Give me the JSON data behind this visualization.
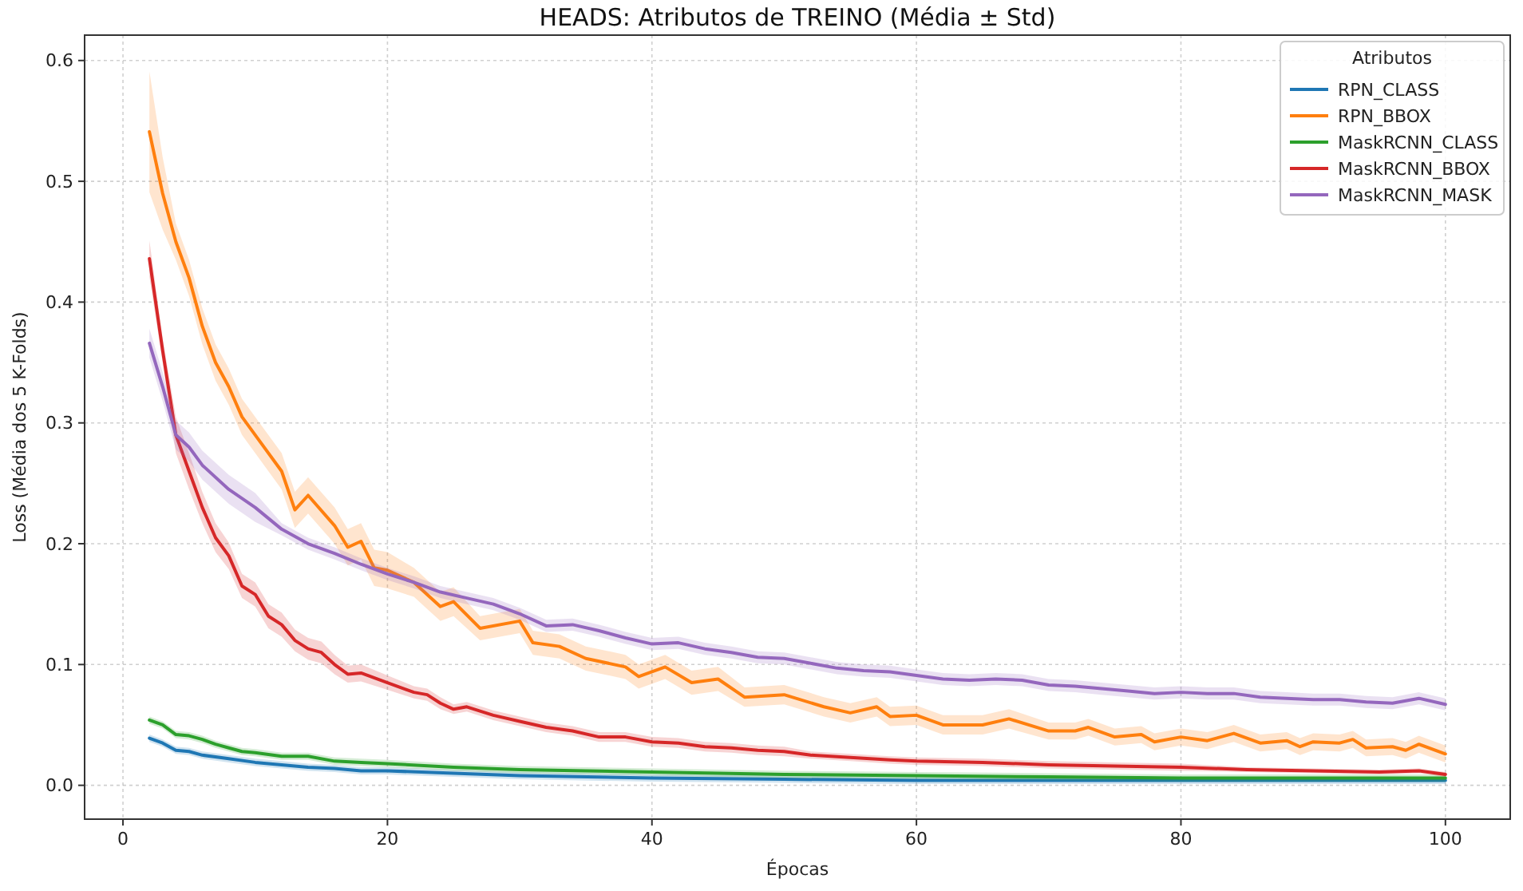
{
  "chart_data": {
    "type": "line",
    "title": "HEADS: Atributos de TREINO (Média ± Std)",
    "xlabel": "Épocas",
    "ylabel": "Loss (Média dos 5 K-Folds)",
    "legend_title": "Atributos",
    "legend": "top right",
    "grid": true,
    "line_style": "solid",
    "marker": "none",
    "xlim": [
      -2.9,
      104.9
    ],
    "ylim": [
      -0.028,
      0.621
    ],
    "xticks": [
      0,
      20,
      40,
      60,
      80,
      100
    ],
    "yticks": [
      {
        "value": 0,
        "label": "0.0"
      },
      {
        "value": 0.1,
        "label": "0.1"
      },
      {
        "value": 0.2,
        "label": "0.2"
      },
      {
        "value": 0.3,
        "label": "0.3"
      },
      {
        "value": 0.4,
        "label": "0.4"
      },
      {
        "value": 0.5,
        "label": "0.5"
      },
      {
        "value": 0.6,
        "label": "0.6"
      }
    ],
    "series": [
      {
        "name": "RPN_CLASS",
        "color": "#1f77b4",
        "x": [
          2,
          3,
          4,
          5,
          6,
          8,
          10,
          12,
          14,
          16,
          18,
          20,
          25,
          30,
          40,
          50,
          60,
          70,
          80,
          90,
          100
        ],
        "values": [
          0.039,
          0.035,
          0.029,
          0.028,
          0.025,
          0.022,
          0.019,
          0.017,
          0.015,
          0.014,
          0.012,
          0.012,
          0.01,
          0.008,
          0.006,
          0.005,
          0.004,
          0.004,
          0.004,
          0.004,
          0.004
        ],
        "lower": [
          0.036,
          0.032,
          0.026,
          0.025,
          0.022,
          0.019,
          0.016,
          0.014,
          0.012,
          0.011,
          0.009,
          0.009,
          0.007,
          0.005,
          0.003,
          0.002,
          0.001,
          0.001,
          0.001,
          0.001,
          0.001
        ],
        "upper": [
          0.042,
          0.038,
          0.032,
          0.031,
          0.028,
          0.025,
          0.022,
          0.02,
          0.018,
          0.017,
          0.015,
          0.015,
          0.013,
          0.011,
          0.009,
          0.008,
          0.007,
          0.007,
          0.007,
          0.007,
          0.007
        ]
      },
      {
        "name": "RPN_BBOX",
        "color": "#ff7f0e",
        "x": [
          2,
          3,
          4,
          5,
          6,
          7,
          8,
          9,
          10,
          12,
          13,
          14,
          16,
          17,
          18,
          19,
          20,
          22,
          24,
          25,
          27,
          30,
          31,
          33,
          35,
          38,
          39,
          41,
          43,
          45,
          47,
          50,
          53,
          55,
          57,
          58,
          60,
          62,
          65,
          67,
          70,
          72,
          73,
          75,
          77,
          78,
          80,
          82,
          84,
          86,
          88,
          89,
          90,
          92,
          93,
          94,
          96,
          97,
          98,
          100
        ],
        "values": [
          0.541,
          0.49,
          0.45,
          0.42,
          0.38,
          0.35,
          0.33,
          0.305,
          0.29,
          0.26,
          0.228,
          0.24,
          0.215,
          0.197,
          0.202,
          0.18,
          0.178,
          0.168,
          0.148,
          0.152,
          0.13,
          0.136,
          0.118,
          0.115,
          0.105,
          0.098,
          0.09,
          0.098,
          0.085,
          0.088,
          0.073,
          0.075,
          0.065,
          0.06,
          0.065,
          0.057,
          0.058,
          0.05,
          0.05,
          0.055,
          0.045,
          0.045,
          0.048,
          0.04,
          0.042,
          0.036,
          0.04,
          0.037,
          0.043,
          0.035,
          0.037,
          0.032,
          0.036,
          0.035,
          0.038,
          0.031,
          0.032,
          0.029,
          0.034,
          0.026
        ],
        "lower": [
          0.491,
          0.46,
          0.435,
          0.405,
          0.365,
          0.335,
          0.315,
          0.29,
          0.275,
          0.245,
          0.213,
          0.225,
          0.2,
          0.182,
          0.187,
          0.165,
          0.163,
          0.156,
          0.136,
          0.14,
          0.12,
          0.126,
          0.108,
          0.105,
          0.095,
          0.088,
          0.08,
          0.088,
          0.075,
          0.078,
          0.065,
          0.067,
          0.057,
          0.052,
          0.057,
          0.049,
          0.05,
          0.042,
          0.042,
          0.047,
          0.038,
          0.038,
          0.041,
          0.033,
          0.035,
          0.029,
          0.033,
          0.03,
          0.036,
          0.028,
          0.03,
          0.025,
          0.029,
          0.028,
          0.031,
          0.024,
          0.025,
          0.022,
          0.027,
          0.019
        ],
        "upper": [
          0.591,
          0.52,
          0.465,
          0.435,
          0.395,
          0.365,
          0.345,
          0.32,
          0.305,
          0.275,
          0.243,
          0.255,
          0.23,
          0.212,
          0.217,
          0.195,
          0.193,
          0.18,
          0.16,
          0.164,
          0.14,
          0.146,
          0.128,
          0.125,
          0.115,
          0.108,
          0.1,
          0.108,
          0.095,
          0.098,
          0.081,
          0.083,
          0.073,
          0.068,
          0.073,
          0.065,
          0.066,
          0.058,
          0.058,
          0.063,
          0.052,
          0.052,
          0.055,
          0.047,
          0.049,
          0.043,
          0.047,
          0.044,
          0.05,
          0.042,
          0.044,
          0.039,
          0.043,
          0.042,
          0.045,
          0.038,
          0.039,
          0.036,
          0.041,
          0.033
        ]
      },
      {
        "name": "MaskRCNN_CLASS",
        "color": "#2ca02c",
        "x": [
          2,
          3,
          4,
          5,
          6,
          7,
          8,
          9,
          10,
          12,
          14,
          16,
          18,
          20,
          25,
          30,
          35,
          40,
          50,
          60,
          70,
          80,
          90,
          100
        ],
        "values": [
          0.054,
          0.05,
          0.042,
          0.041,
          0.038,
          0.034,
          0.031,
          0.028,
          0.027,
          0.024,
          0.024,
          0.02,
          0.019,
          0.018,
          0.015,
          0.013,
          0.012,
          0.011,
          0.009,
          0.008,
          0.007,
          0.006,
          0.006,
          0.006
        ],
        "lower": [
          0.051,
          0.047,
          0.039,
          0.038,
          0.035,
          0.031,
          0.028,
          0.025,
          0.024,
          0.021,
          0.021,
          0.017,
          0.016,
          0.015,
          0.012,
          0.01,
          0.009,
          0.008,
          0.006,
          0.005,
          0.004,
          0.003,
          0.003,
          0.003
        ],
        "upper": [
          0.057,
          0.053,
          0.045,
          0.044,
          0.041,
          0.037,
          0.034,
          0.031,
          0.03,
          0.027,
          0.027,
          0.023,
          0.022,
          0.021,
          0.018,
          0.016,
          0.015,
          0.014,
          0.012,
          0.011,
          0.01,
          0.009,
          0.009,
          0.009
        ]
      },
      {
        "name": "MaskRCNN_BBOX",
        "color": "#d62728",
        "x": [
          2,
          3,
          4,
          5,
          6,
          7,
          8,
          9,
          10,
          11,
          12,
          13,
          14,
          15,
          16,
          17,
          18,
          20,
          22,
          23,
          24,
          25,
          26,
          28,
          30,
          32,
          34,
          36,
          38,
          40,
          42,
          44,
          46,
          48,
          50,
          52,
          55,
          58,
          60,
          65,
          70,
          75,
          80,
          85,
          90,
          95,
          98,
          100
        ],
        "values": [
          0.436,
          0.36,
          0.29,
          0.26,
          0.23,
          0.205,
          0.19,
          0.165,
          0.158,
          0.14,
          0.133,
          0.12,
          0.113,
          0.11,
          0.1,
          0.092,
          0.093,
          0.085,
          0.077,
          0.075,
          0.068,
          0.063,
          0.065,
          0.058,
          0.053,
          0.048,
          0.045,
          0.04,
          0.04,
          0.036,
          0.035,
          0.032,
          0.031,
          0.029,
          0.028,
          0.025,
          0.023,
          0.021,
          0.02,
          0.019,
          0.017,
          0.016,
          0.015,
          0.013,
          0.012,
          0.011,
          0.012,
          0.009
        ],
        "lower": [
          0.421,
          0.35,
          0.275,
          0.245,
          0.217,
          0.193,
          0.179,
          0.155,
          0.148,
          0.13,
          0.123,
          0.111,
          0.104,
          0.101,
          0.092,
          0.085,
          0.086,
          0.079,
          0.072,
          0.07,
          0.063,
          0.059,
          0.061,
          0.054,
          0.049,
          0.044,
          0.041,
          0.036,
          0.036,
          0.032,
          0.031,
          0.028,
          0.027,
          0.025,
          0.024,
          0.022,
          0.02,
          0.018,
          0.017,
          0.016,
          0.014,
          0.013,
          0.012,
          0.011,
          0.01,
          0.009,
          0.01,
          0.007
        ],
        "upper": [
          0.451,
          0.37,
          0.305,
          0.275,
          0.243,
          0.217,
          0.201,
          0.175,
          0.168,
          0.15,
          0.143,
          0.129,
          0.122,
          0.119,
          0.108,
          0.099,
          0.1,
          0.091,
          0.082,
          0.08,
          0.073,
          0.067,
          0.069,
          0.062,
          0.057,
          0.052,
          0.049,
          0.044,
          0.044,
          0.04,
          0.039,
          0.036,
          0.035,
          0.033,
          0.032,
          0.028,
          0.026,
          0.024,
          0.023,
          0.022,
          0.02,
          0.019,
          0.018,
          0.015,
          0.014,
          0.013,
          0.014,
          0.011
        ]
      },
      {
        "name": "MaskRCNN_MASK",
        "color": "#9467bd",
        "x": [
          2,
          3,
          4,
          5,
          6,
          8,
          10,
          12,
          14,
          16,
          18,
          20,
          22,
          24,
          26,
          28,
          30,
          32,
          34,
          36,
          38,
          40,
          42,
          44,
          46,
          48,
          50,
          52,
          54,
          56,
          58,
          60,
          62,
          64,
          66,
          68,
          70,
          72,
          74,
          76,
          78,
          80,
          82,
          84,
          86,
          88,
          90,
          92,
          94,
          96,
          98,
          100
        ],
        "values": [
          0.366,
          0.33,
          0.29,
          0.28,
          0.265,
          0.245,
          0.23,
          0.212,
          0.2,
          0.192,
          0.183,
          0.175,
          0.168,
          0.16,
          0.155,
          0.15,
          0.142,
          0.132,
          0.133,
          0.128,
          0.122,
          0.117,
          0.118,
          0.113,
          0.11,
          0.106,
          0.105,
          0.101,
          0.097,
          0.095,
          0.094,
          0.091,
          0.088,
          0.087,
          0.088,
          0.087,
          0.083,
          0.082,
          0.08,
          0.078,
          0.076,
          0.077,
          0.076,
          0.076,
          0.073,
          0.072,
          0.071,
          0.071,
          0.069,
          0.068,
          0.072,
          0.067
        ],
        "lower": [
          0.354,
          0.318,
          0.278,
          0.268,
          0.253,
          0.233,
          0.218,
          0.207,
          0.195,
          0.187,
          0.178,
          0.17,
          0.163,
          0.155,
          0.15,
          0.145,
          0.137,
          0.127,
          0.128,
          0.123,
          0.117,
          0.112,
          0.113,
          0.108,
          0.105,
          0.101,
          0.1,
          0.096,
          0.092,
          0.09,
          0.089,
          0.086,
          0.083,
          0.082,
          0.083,
          0.082,
          0.078,
          0.077,
          0.075,
          0.073,
          0.071,
          0.072,
          0.071,
          0.071,
          0.068,
          0.067,
          0.066,
          0.066,
          0.064,
          0.063,
          0.067,
          0.062
        ],
        "upper": [
          0.378,
          0.342,
          0.302,
          0.292,
          0.277,
          0.257,
          0.242,
          0.217,
          0.205,
          0.197,
          0.188,
          0.18,
          0.173,
          0.165,
          0.16,
          0.155,
          0.147,
          0.137,
          0.138,
          0.133,
          0.127,
          0.122,
          0.123,
          0.118,
          0.115,
          0.111,
          0.11,
          0.106,
          0.102,
          0.1,
          0.099,
          0.096,
          0.093,
          0.092,
          0.093,
          0.092,
          0.088,
          0.087,
          0.085,
          0.083,
          0.081,
          0.082,
          0.081,
          0.081,
          0.078,
          0.077,
          0.076,
          0.076,
          0.074,
          0.073,
          0.077,
          0.072
        ]
      }
    ]
  }
}
